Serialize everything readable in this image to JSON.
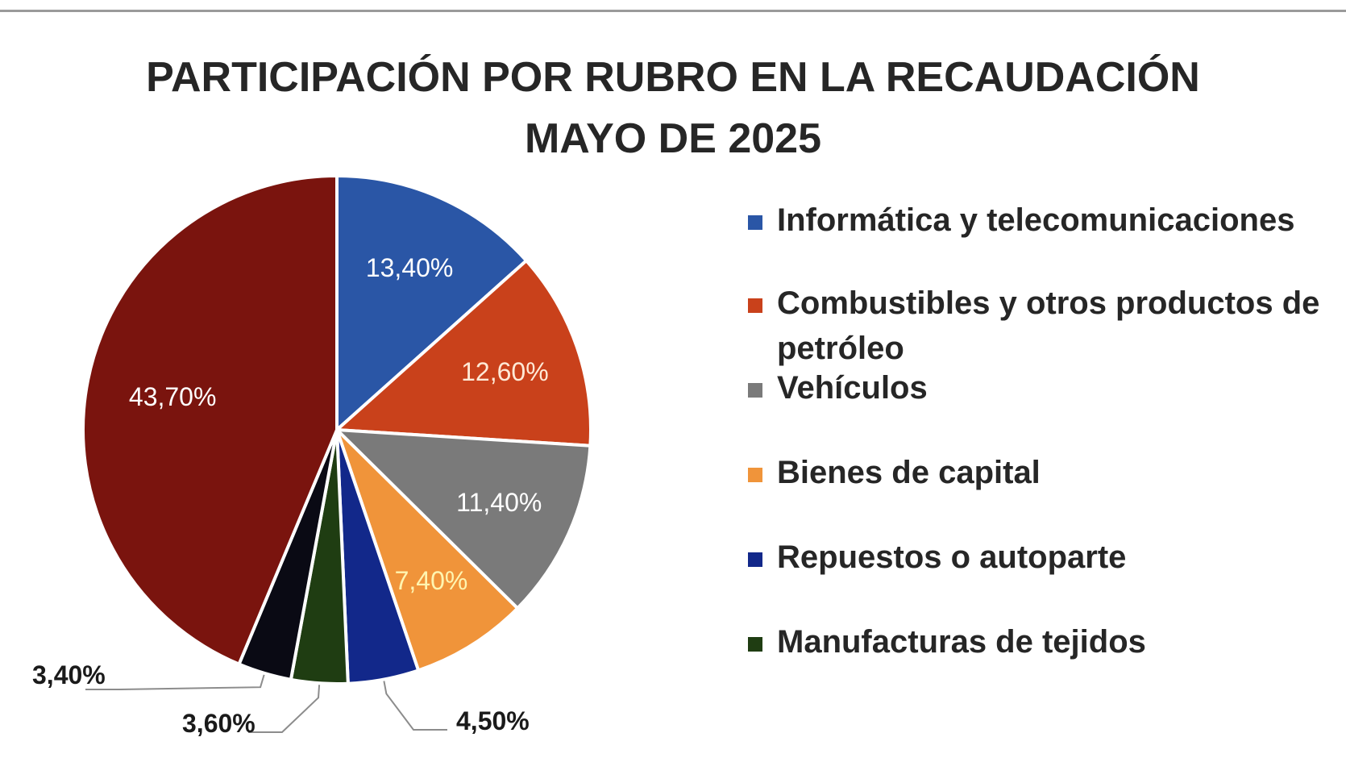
{
  "chart_data": {
    "type": "pie",
    "title": "PARTICIPACIÓN POR RUBRO EN LA RECAUDACIÓN",
    "subtitle": "MAYO DE 2025",
    "legend_position": "right",
    "slices": [
      {
        "label": "Informática y telecomunicaciones",
        "value": 13.4,
        "display": "13,40%",
        "color": "#2a56a6",
        "label_color": "#ffffff",
        "in_legend": true
      },
      {
        "label": "Combustibles y otros productos de petróleo",
        "value": 12.6,
        "display": "12,60%",
        "color": "#c9411b",
        "label_color": "#ffe9d6",
        "in_legend": true
      },
      {
        "label": "Vehículos",
        "value": 11.4,
        "display": "11,40%",
        "color": "#7a7a7a",
        "label_color": "#ffffff",
        "in_legend": true
      },
      {
        "label": "Bienes de capital",
        "value": 7.4,
        "display": "7,40%",
        "color": "#f0943a",
        "label_color": "#fff5b0",
        "in_legend": true
      },
      {
        "label": "Repuestos o autoparte",
        "value": 4.5,
        "display": "4,50%",
        "color": "#12288a",
        "label_color": "#1a1a1a",
        "in_legend": true,
        "outside": true
      },
      {
        "label": "Manufacturas de tejidos",
        "value": 3.6,
        "display": "3,60%",
        "color": "#1f3d12",
        "label_color": "#1a1a1a",
        "in_legend": true,
        "outside": true
      },
      {
        "label": "",
        "value": 3.4,
        "display": "3,40%",
        "color": "#0a0a14",
        "label_color": "#1a1a1a",
        "in_legend": false,
        "outside": true
      },
      {
        "label": "",
        "value": 43.7,
        "display": "43,70%",
        "color": "#7a140e",
        "label_color": "#ffffff",
        "in_legend": false
      }
    ]
  }
}
